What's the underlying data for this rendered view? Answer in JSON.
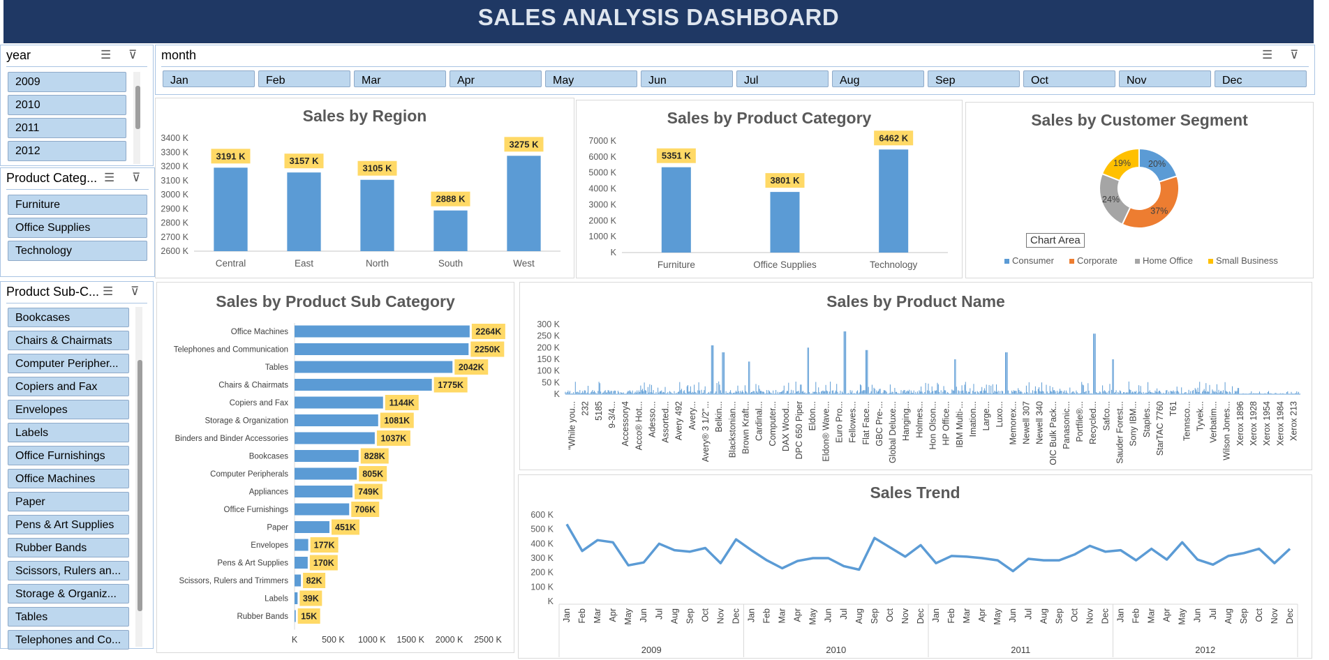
{
  "title": "SALES ANALYSIS DASHBOARD",
  "slicers": {
    "year": {
      "header": "year",
      "items": [
        "2009",
        "2010",
        "2011",
        "2012"
      ]
    },
    "month": {
      "header": "month",
      "items": [
        "Jan",
        "Feb",
        "Mar",
        "Apr",
        "May",
        "Jun",
        "Jul",
        "Aug",
        "Sep",
        "Oct",
        "Nov",
        "Dec"
      ]
    },
    "category": {
      "header": "Product Categ...",
      "items": [
        "Furniture",
        "Office Supplies",
        "Technology"
      ]
    },
    "subcategory": {
      "header": "Product Sub-C...",
      "items": [
        "Bookcases",
        "Chairs & Chairmats",
        "Computer Peripher...",
        "Copiers and Fax",
        "Envelopes",
        "Labels",
        "Office Furnishings",
        "Office Machines",
        "Paper",
        "Pens & Art Supplies",
        "Rubber Bands",
        "Scissors, Rulers an...",
        "Storage & Organiz...",
        "Tables",
        "Telephones and Co..."
      ]
    }
  },
  "tooltip": "Chart Area",
  "chart_data": [
    {
      "id": "region",
      "type": "bar",
      "title": "Sales by Region",
      "categories": [
        "Central",
        "East",
        "North",
        "South",
        "West"
      ],
      "values": [
        3191,
        3157,
        3105,
        2888,
        3275
      ],
      "labels": [
        "3191 K",
        "3157 K",
        "3105 K",
        "2888 K",
        "3275 K"
      ],
      "yticks": [
        "2600 K",
        "2700 K",
        "2800 K",
        "2900 K",
        "3000 K",
        "3100 K",
        "3200 K",
        "3300 K",
        "3400 K"
      ],
      "ylim": [
        2600,
        3400
      ],
      "label_color": "#ffd966",
      "bar_color": "#5b9bd5"
    },
    {
      "id": "category",
      "type": "bar",
      "title": "Sales by Product Category",
      "categories": [
        "Furniture",
        "Office Supplies",
        "Technology"
      ],
      "values": [
        5351,
        3801,
        6462
      ],
      "labels": [
        "5351 K",
        "3801 K",
        "6462 K"
      ],
      "yticks": [
        "K",
        "1000 K",
        "2000 K",
        "3000 K",
        "4000 K",
        "5000 K",
        "6000 K",
        "7000 K"
      ],
      "ylim": [
        0,
        7000
      ],
      "label_color": "#ffd966",
      "bar_color": "#5b9bd5"
    },
    {
      "id": "segment",
      "type": "pie",
      "title": "Sales by Customer Segment",
      "categories": [
        "Consumer",
        "Corporate",
        "Home Office",
        "Small Business"
      ],
      "values": [
        20,
        37,
        24,
        19
      ],
      "labels": [
        "20%",
        "37%",
        "24%",
        "19%"
      ],
      "colors": [
        "#5b9bd5",
        "#ed7d31",
        "#a5a5a5",
        "#ffc000"
      ],
      "legend": "bottom"
    },
    {
      "id": "subcategory",
      "type": "bar",
      "orientation": "horizontal",
      "title": "Sales by Product Sub Category",
      "categories": [
        "Office Machines",
        "Telephones and Communication",
        "Tables",
        "Chairs & Chairmats",
        "Copiers and Fax",
        "Storage & Organization",
        "Binders and Binder Accessories",
        "Bookcases",
        "Computer Peripherals",
        "Appliances",
        "Office Furnishings",
        "Paper",
        "Envelopes",
        "Pens & Art Supplies",
        "Scissors, Rulers and Trimmers",
        "Labels",
        "Rubber Bands"
      ],
      "values": [
        2264,
        2250,
        2042,
        1775,
        1144,
        1081,
        1037,
        828,
        805,
        749,
        706,
        451,
        177,
        170,
        82,
        39,
        15
      ],
      "labels": [
        "2264K",
        "2250K",
        "2042K",
        "1775K",
        "1144K",
        "1081K",
        "1037K",
        "828K",
        "805K",
        "749K",
        "706K",
        "451K",
        "177K",
        "170K",
        "82K",
        "39K",
        "15K"
      ],
      "xticks": [
        "K",
        "500 K",
        "1000 K",
        "1500 K",
        "2000 K",
        "2500 K"
      ],
      "xlim": [
        0,
        2500
      ],
      "label_color": "#ffd966",
      "bar_color": "#5b9bd5"
    },
    {
      "id": "product",
      "type": "bar",
      "title": "Sales by Product Name",
      "yticks": [
        "K",
        "50 K",
        "100 K",
        "150 K",
        "200 K",
        "250 K",
        "300 K"
      ],
      "ylim": [
        0,
        300
      ],
      "categories": [
        "\"While you...",
        "232",
        "5185",
        "9-3/4...",
        "Accessory4",
        "Acco® Hot...",
        "Adesso...",
        "Assorted...",
        "Avery 492",
        "Avery...",
        "Avery® 3 1/2\"...",
        "Belkin...",
        "Blackstonian...",
        "Brown Kraft...",
        "Cardinal...",
        "Computer...",
        "DAX Wood...",
        "DPC 650 Piper",
        "Eldon...",
        "Eldon® Wave...",
        "Euro Pro...",
        "Fellowes...",
        "Flat Face...",
        "GBC Pre-...",
        "Global Deluxe...",
        "Hanging...",
        "Holmes...",
        "Hon Olson...",
        "HP Office...",
        "IBM Multi-...",
        "Imation...",
        "Large...",
        "Luxo...",
        "Memorex...",
        "Newell 307",
        "Newell 340",
        "OIC Bulk Pack...",
        "Panasonic...",
        "Portfile®...",
        "Recycled...",
        "Safco...",
        "Sauder Forest...",
        "Sony IBM...",
        "Staples...",
        "StarTAC 7760",
        "T61",
        "Tennsco...",
        "Tyvek...",
        "Verbatim...",
        "Wilson Jones...",
        "Xerox 1896",
        "Xerox 1928",
        "Xerox 1954",
        "Xerox 1984",
        "Xerox 213"
      ],
      "bar_color": "#5b9bd5"
    },
    {
      "id": "trend",
      "type": "line",
      "title": "Sales Trend",
      "years": [
        "2009",
        "2010",
        "2011",
        "2012"
      ],
      "months": [
        "Jan",
        "Feb",
        "Mar",
        "Apr",
        "May",
        "Jun",
        "Jul",
        "Aug",
        "Sep",
        "Oct",
        "Nov",
        "Dec"
      ],
      "values": [
        535,
        350,
        425,
        410,
        250,
        270,
        400,
        355,
        345,
        370,
        265,
        430,
        355,
        285,
        230,
        280,
        300,
        300,
        245,
        220,
        440,
        375,
        310,
        390,
        265,
        315,
        310,
        300,
        285,
        210,
        295,
        285,
        285,
        325,
        385,
        345,
        355,
        285,
        365,
        290,
        410,
        290,
        255,
        315,
        335,
        365,
        265,
        365
      ],
      "yticks": [
        "K",
        "100 K",
        "200 K",
        "300 K",
        "400 K",
        "500 K",
        "600 K"
      ],
      "ylim": [
        0,
        600
      ],
      "line_color": "#5b9bd5"
    }
  ]
}
